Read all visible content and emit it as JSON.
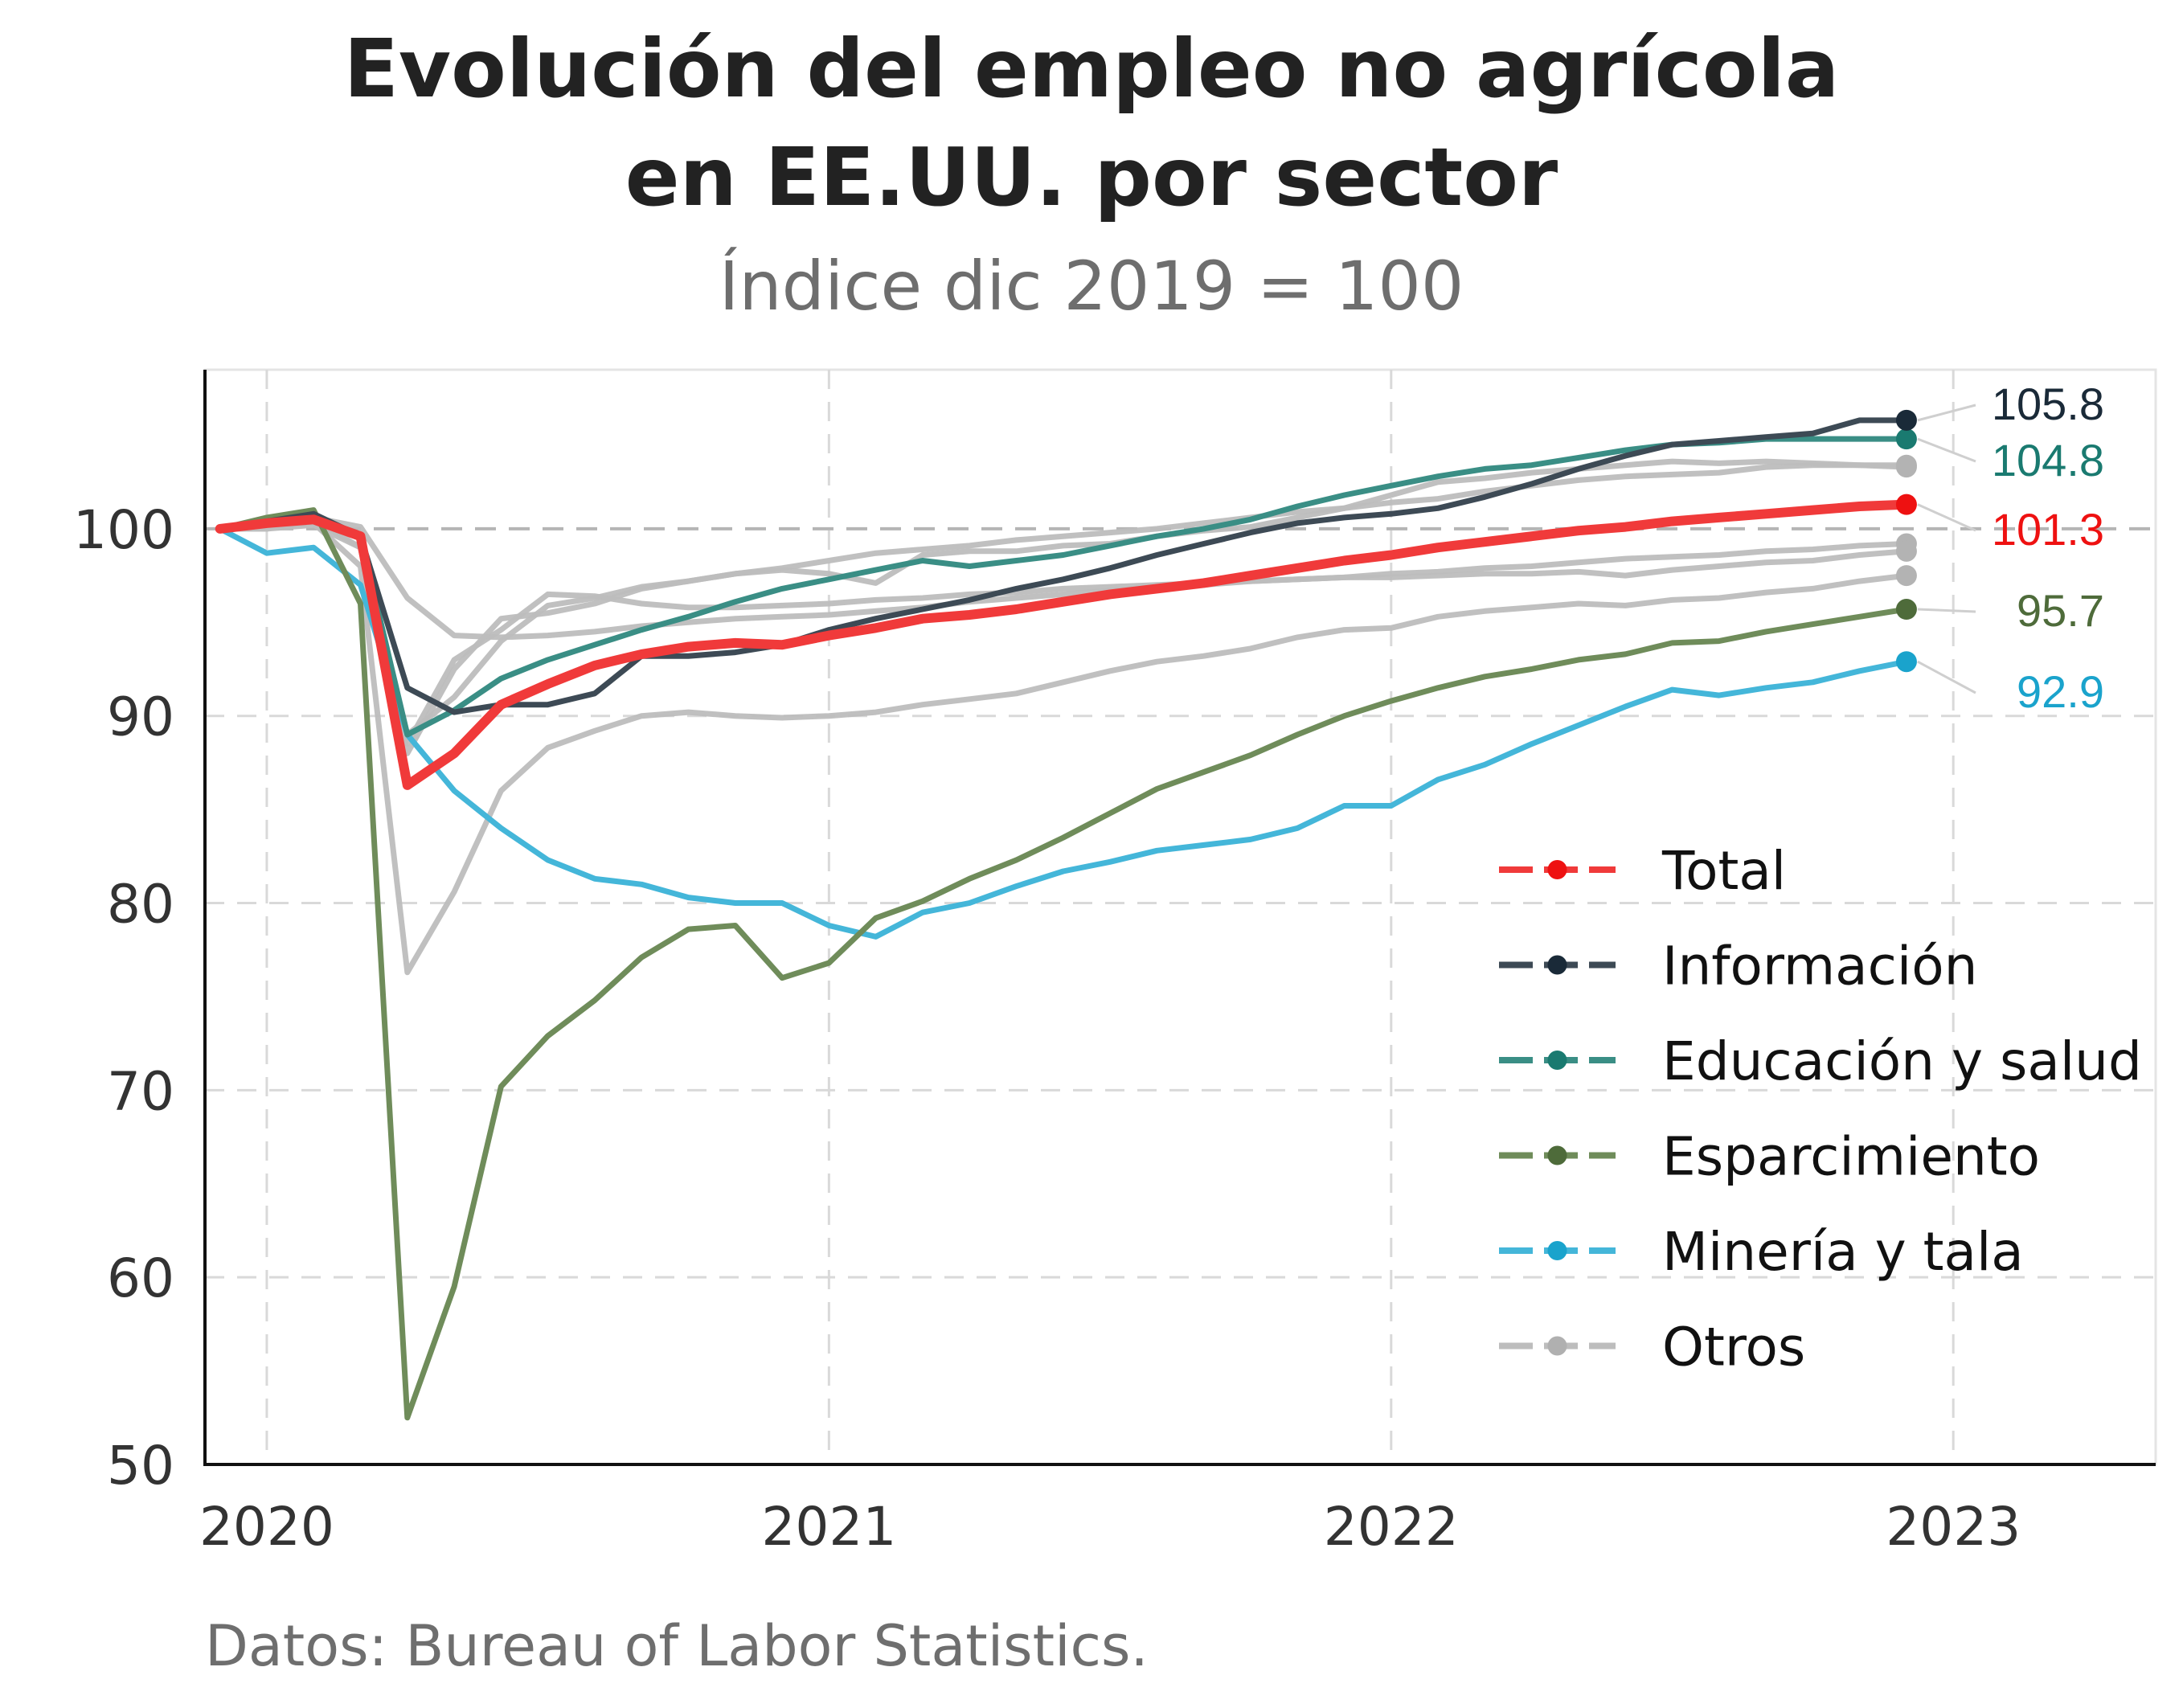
{
  "chart_data": {
    "type": "line",
    "title_line1": "Evolución del empleo no agrícola",
    "title_line2": "en EE.UU. por sector",
    "subtitle": "Índice dic 2019 = 100",
    "caption": "Datos: Bureau of Labor Statistics.",
    "xlabel": "",
    "ylabel": "",
    "xlim": [
      2019.89,
      2023.36
    ],
    "ylim": [
      50,
      108.5
    ],
    "x_ticks": [
      2020,
      2021,
      2022,
      2023
    ],
    "x_tick_labels": [
      "2020",
      "2021",
      "2022",
      "2023"
    ],
    "y_ticks": [
      50,
      60,
      70,
      80,
      90,
      100
    ],
    "y_tick_labels": [
      "50",
      "60",
      "70",
      "80",
      "90",
      "100"
    ],
    "reference_line": 100,
    "grid": true,
    "legend_position": "bottom-right",
    "x_dates": [
      "2019-12",
      "2020-01",
      "2020-02",
      "2020-03",
      "2020-04",
      "2020-05",
      "2020-06",
      "2020-07",
      "2020-08",
      "2020-09",
      "2020-10",
      "2020-11",
      "2020-12",
      "2021-01",
      "2021-02",
      "2021-03",
      "2021-04",
      "2021-05",
      "2021-06",
      "2021-07",
      "2021-08",
      "2021-09",
      "2021-10",
      "2021-11",
      "2021-12",
      "2022-01",
      "2022-02",
      "2022-03",
      "2022-04",
      "2022-05",
      "2022-06",
      "2022-07",
      "2022-08",
      "2022-09",
      "2022-10",
      "2022-11",
      "2022-12"
    ],
    "series": [
      {
        "name": "Otros",
        "color": "#bdbdbd",
        "end_label": "",
        "values": [
          100,
          100.2,
          100.6,
          100.1,
          96.3,
          94.3,
          94.2,
          94.3,
          94.5,
          94.8,
          95.0,
          95.2,
          95.3,
          95.4,
          95.6,
          95.8,
          96.1,
          96.3,
          96.5,
          96.7,
          96.9,
          97.0,
          97.2,
          97.3,
          97.4,
          97.6,
          97.7,
          97.9,
          98.0,
          98.2,
          98.4,
          98.5,
          98.6,
          98.8,
          98.9,
          99.1,
          99.2
        ]
      },
      {
        "name": "Otros",
        "color": "#bdbdbd",
        "end_label": "",
        "values": [
          100,
          100.1,
          100.3,
          98.0,
          76.3,
          80.6,
          86.0,
          88.3,
          89.2,
          90.0,
          90.2,
          90.0,
          89.9,
          90.0,
          90.2,
          90.6,
          90.9,
          91.2,
          91.8,
          92.4,
          92.9,
          93.2,
          93.6,
          94.2,
          94.6,
          94.7,
          95.3,
          95.6,
          95.8,
          96.0,
          95.9,
          96.2,
          96.3,
          96.6,
          96.8,
          97.2,
          97.5
        ]
      },
      {
        "name": "Otros",
        "color": "#bdbdbd",
        "end_label": "",
        "values": [
          100,
          100.0,
          100.2,
          99.0,
          88.5,
          93.0,
          94.6,
          96.5,
          96.4,
          96.0,
          95.8,
          95.8,
          95.9,
          96.0,
          96.2,
          96.3,
          96.5,
          96.6,
          96.8,
          96.9,
          97.0,
          97.1,
          97.2,
          97.3,
          97.4,
          97.4,
          97.5,
          97.6,
          97.6,
          97.7,
          97.5,
          97.8,
          98.0,
          98.2,
          98.3,
          98.6,
          98.8
        ]
      },
      {
        "name": "Otros",
        "color": "#bdbdbd",
        "end_label": "",
        "values": [
          100,
          100.1,
          100.4,
          99.5,
          89.0,
          91.0,
          94.0,
          95.9,
          96.3,
          96.9,
          97.2,
          97.6,
          97.9,
          98.3,
          98.7,
          98.9,
          99.1,
          99.4,
          99.6,
          99.8,
          100.0,
          100.3,
          100.6,
          100.9,
          101.1,
          101.4,
          101.6,
          102.0,
          102.3,
          102.6,
          102.8,
          102.9,
          103.0,
          103.3,
          103.4,
          103.4,
          103.4
        ]
      },
      {
        "name": "Otros",
        "color": "#bdbdbd",
        "end_label": "",
        "values": [
          100,
          100.0,
          100.5,
          99.0,
          88.0,
          92.5,
          95.2,
          95.5,
          96.0,
          96.8,
          97.2,
          97.6,
          97.8,
          97.6,
          97.1,
          98.6,
          98.8,
          98.8,
          99.1,
          99.2,
          99.6,
          99.9,
          100.1,
          100.6,
          101.1,
          101.8,
          102.5,
          102.7,
          103.0,
          103.2,
          103.4,
          103.6,
          103.5,
          103.6,
          103.5,
          103.4,
          103.3
        ]
      },
      {
        "name": "Minería y tala",
        "color": "#44b6d9",
        "end_label": "92.9",
        "label_color": "#1aa3cc",
        "values": [
          100,
          98.7,
          99.0,
          97.0,
          89.0,
          86.0,
          84.0,
          82.3,
          81.3,
          81.0,
          80.3,
          80.0,
          80.0,
          78.8,
          78.2,
          79.5,
          80.0,
          80.9,
          81.7,
          82.2,
          82.8,
          83.1,
          83.4,
          84.0,
          85.2,
          85.2,
          86.6,
          87.4,
          88.5,
          89.5,
          90.5,
          91.4,
          91.1,
          91.5,
          91.8,
          92.4,
          92.9
        ]
      },
      {
        "name": "Esparcimiento",
        "color": "#6f8c5a",
        "end_label": "95.7",
        "label_color": "#4e6b3a",
        "values": [
          100,
          100.6,
          101.0,
          96.0,
          52.5,
          59.5,
          70.2,
          72.9,
          74.8,
          77.1,
          78.6,
          78.8,
          76.0,
          76.8,
          79.2,
          80.1,
          81.3,
          82.3,
          83.5,
          84.8,
          86.1,
          87.0,
          87.9,
          89.0,
          90.0,
          90.8,
          91.5,
          92.1,
          92.5,
          93.0,
          93.3,
          93.9,
          94.0,
          94.5,
          94.9,
          95.3,
          95.7
        ]
      },
      {
        "name": "Educación y salud",
        "color": "#3a8e85",
        "end_label": "104.8",
        "label_color": "#1a7a70",
        "values": [
          100,
          100.3,
          100.6,
          99.6,
          89.0,
          90.3,
          92.0,
          93.0,
          93.8,
          94.6,
          95.3,
          96.1,
          96.8,
          97.3,
          97.8,
          98.3,
          98.0,
          98.3,
          98.6,
          99.1,
          99.6,
          100.0,
          100.5,
          101.2,
          101.8,
          102.3,
          102.8,
          103.2,
          103.4,
          103.8,
          104.2,
          104.5,
          104.6,
          104.8,
          104.8,
          104.8,
          104.8
        ]
      },
      {
        "name": "Información",
        "color": "#3d4a55",
        "end_label": "105.8",
        "label_color": "#1a2a38",
        "values": [
          100,
          100.4,
          100.8,
          99.6,
          91.5,
          90.2,
          90.6,
          90.6,
          91.2,
          93.2,
          93.2,
          93.4,
          93.8,
          94.6,
          95.2,
          95.7,
          96.2,
          96.8,
          97.3,
          97.9,
          98.6,
          99.2,
          99.8,
          100.3,
          100.6,
          100.8,
          101.1,
          101.7,
          102.4,
          103.2,
          103.9,
          104.5,
          104.7,
          104.9,
          105.1,
          105.8,
          105.8
        ]
      },
      {
        "name": "Total",
        "color": "#f03a3a",
        "end_label": "101.3",
        "label_color": "#ee1111",
        "values": [
          100,
          100.3,
          100.5,
          99.6,
          86.3,
          88.0,
          90.6,
          91.7,
          92.7,
          93.3,
          93.7,
          93.9,
          93.8,
          94.3,
          94.7,
          95.2,
          95.4,
          95.7,
          96.1,
          96.5,
          96.8,
          97.1,
          97.5,
          97.9,
          98.3,
          98.6,
          99.0,
          99.3,
          99.6,
          99.9,
          100.1,
          100.4,
          100.6,
          100.8,
          101.0,
          101.2,
          101.3
        ]
      }
    ],
    "legend": [
      {
        "label": "Total",
        "color": "#f03a3a",
        "dot": "#ee1111"
      },
      {
        "label": "Información",
        "color": "#3d4a55",
        "dot": "#1a2a38"
      },
      {
        "label": "Educación y salud",
        "color": "#3a8e85",
        "dot": "#1a7a70"
      },
      {
        "label": "Esparcimiento",
        "color": "#6f8c5a",
        "dot": "#4e6b3a"
      },
      {
        "label": "Minería y tala",
        "color": "#44b6d9",
        "dot": "#1aa3cc"
      },
      {
        "label": "Otros",
        "color": "#bdbdbd",
        "dot": "#b0b0b0"
      }
    ]
  }
}
